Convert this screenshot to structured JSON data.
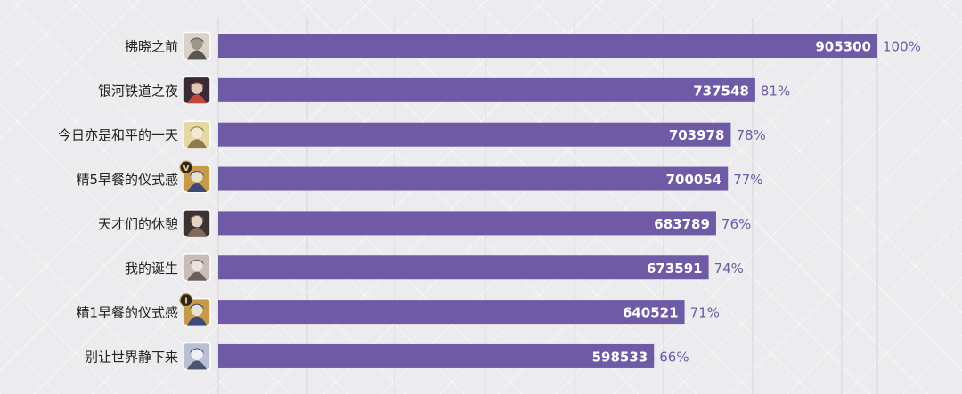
{
  "chart_data": {
    "type": "bar",
    "orientation": "horizontal",
    "categories": [
      "拂晓之前",
      "银河铁道之夜",
      "今日亦是和平的一天",
      "精5早餐的仪式感",
      "天才们的休憩",
      "我的诞生",
      "精1早餐的仪式感",
      "别让世界静下来"
    ],
    "values": [
      905300,
      737548,
      703978,
      700054,
      683789,
      673591,
      640521,
      598533
    ],
    "percent_labels": [
      "100%",
      "81%",
      "78%",
      "77%",
      "76%",
      "74%",
      "71%",
      "66%"
    ],
    "icons": [
      "character-portrait-icon",
      "character-portrait-icon",
      "character-portrait-icon",
      "character-portrait-with-superimposition-5-badge-icon",
      "character-portrait-icon",
      "character-portrait-icon",
      "character-portrait-with-superimposition-1-badge-icon",
      "character-portrait-icon"
    ],
    "icon_badges": [
      "",
      "",
      "",
      "V",
      "",
      "",
      "I",
      ""
    ],
    "title": "",
    "xlabel": "",
    "ylabel": "",
    "xlim": [
      0,
      905300
    ],
    "grid": true,
    "legend": "none",
    "colors": {
      "bar": "#6e5aa5",
      "value_text": "#ffffff",
      "percent_text": "#6e5aa5",
      "category_text": "#222222",
      "gridline": "#d6d6da",
      "background": "#ececef"
    }
  }
}
